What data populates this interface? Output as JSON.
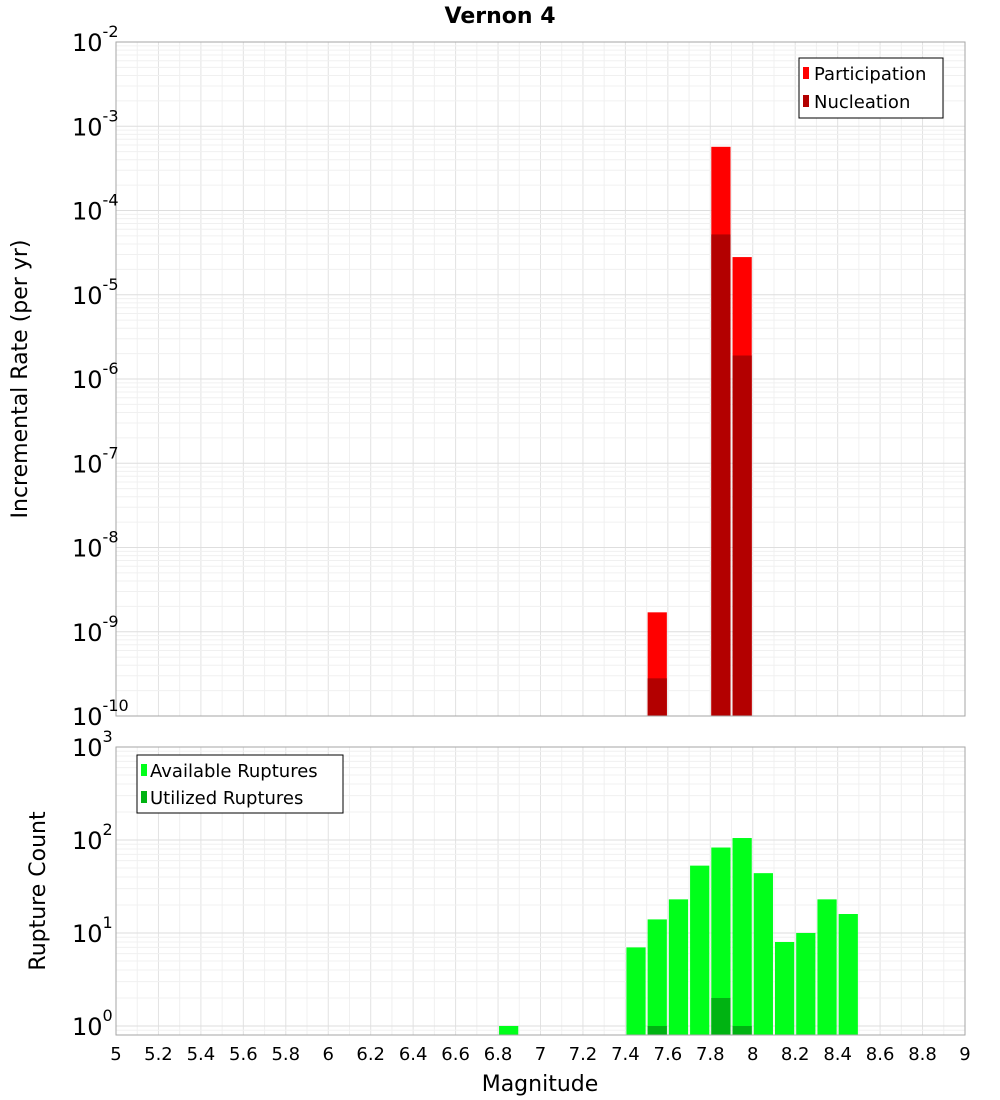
{
  "title": "Vernon 4",
  "xlabel": "Magnitude",
  "x_ticks": [
    "5",
    "5.2",
    "5.4",
    "5.6",
    "5.8",
    "6",
    "6.2",
    "6.4",
    "6.6",
    "6.8",
    "7",
    "7.2",
    "7.4",
    "7.6",
    "7.8",
    "8",
    "8.2",
    "8.4",
    "8.6",
    "8.8",
    "9"
  ],
  "chart_data": [
    {
      "type": "bar",
      "ylabel": "Incremental Rate (per yr)",
      "xlim": [
        5,
        9
      ],
      "ylim": [
        1e-10,
        0.01
      ],
      "y_scale": "log",
      "y_tick_exponents": [
        -10,
        -9,
        -8,
        -7,
        -6,
        -5,
        -4,
        -3,
        -2
      ],
      "bin_width": 0.1,
      "grid": true,
      "legend_position": "top-right",
      "series": [
        {
          "name": "Participation",
          "color": "#ff0000",
          "x": [
            7.55,
            7.85,
            7.95
          ],
          "values": [
            1.7e-09,
            0.00057,
            2.8e-05
          ]
        },
        {
          "name": "Nucleation",
          "color": "#b30000",
          "x": [
            7.55,
            7.85,
            7.95
          ],
          "values": [
            2.8e-10,
            5.2e-05,
            1.9e-06
          ]
        }
      ]
    },
    {
      "type": "bar",
      "ylabel": "Rupture Count",
      "xlim": [
        5,
        9
      ],
      "ylim": [
        0.8,
        1000
      ],
      "y_scale": "log",
      "y_tick_exponents": [
        0,
        1,
        2,
        3
      ],
      "bin_width": 0.1,
      "grid": true,
      "legend_position": "top-left",
      "series": [
        {
          "name": "Available Ruptures",
          "color": "#00ff1a",
          "x": [
            6.85,
            7.45,
            7.55,
            7.65,
            7.75,
            7.85,
            7.95,
            8.05,
            8.15,
            8.25,
            8.35,
            8.45
          ],
          "values": [
            1,
            7,
            14,
            23,
            53,
            83,
            105,
            44,
            8,
            10,
            23,
            16
          ]
        },
        {
          "name": "Utilized Ruptures",
          "color": "#00b312",
          "x": [
            7.55,
            7.85,
            7.95
          ],
          "values": [
            1,
            2,
            1
          ]
        }
      ]
    }
  ]
}
